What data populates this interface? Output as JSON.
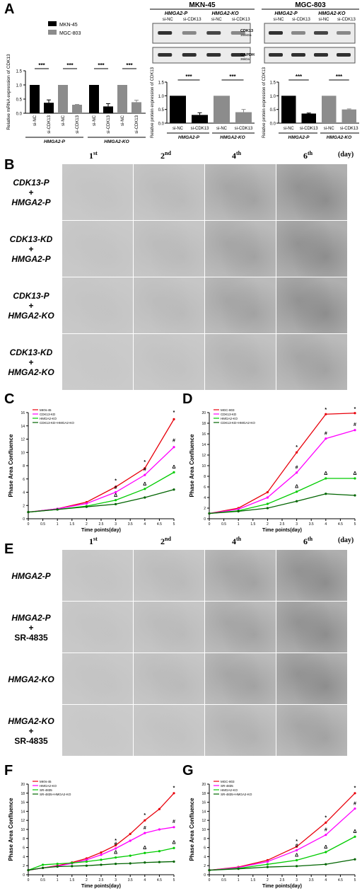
{
  "panelA": {
    "label": "A",
    "mrna": {
      "legend": [
        {
          "name": "MKN-45",
          "color": "#000000"
        },
        {
          "name": "MGC-803",
          "color": "#8c8c8c"
        }
      ],
      "ylabel": "Relative mRNA expression of CDK13",
      "yticks": [
        "0.0",
        "0.5",
        "1.0",
        "1.5"
      ],
      "bars": [
        {
          "x": "si-NC",
          "value": 1.0,
          "err": 0,
          "color": "#000000"
        },
        {
          "x": "si-CDK13",
          "value": 0.37,
          "err": 0.1,
          "color": "#000000"
        },
        {
          "x": "si-NC",
          "value": 1.0,
          "err": 0,
          "color": "#8c8c8c"
        },
        {
          "x": "si-CDK13",
          "value": 0.3,
          "err": 0.01,
          "color": "#8c8c8c"
        },
        {
          "x": "si-NC",
          "value": 1.0,
          "err": 0,
          "color": "#000000"
        },
        {
          "x": "si-CDK13",
          "value": 0.24,
          "err": 0.1,
          "color": "#000000"
        },
        {
          "x": "si-NC",
          "value": 1.0,
          "err": 0,
          "color": "#8c8c8c"
        },
        {
          "x": "si-CDK13",
          "value": 0.39,
          "err": 0.07,
          "color": "#8c8c8c"
        }
      ],
      "sig": "***",
      "groups": [
        "HMGA2-P",
        "HMGA2-KO"
      ]
    },
    "mkn": {
      "title": "MKN-45",
      "blot_headers": [
        "HMGA2-P",
        "HMGA2-KO"
      ],
      "lanes": [
        "si-NC",
        "si-CDK13",
        "si-NC",
        "si-CDK13"
      ],
      "ylabel": "Relative protein expression of CDK13",
      "yticks": [
        "0.0",
        "0.5",
        "1.0",
        "1.5"
      ],
      "bars": [
        {
          "v": 1.0,
          "e": 0,
          "c": "#000000"
        },
        {
          "v": 0.3,
          "e": 0.08,
          "c": "#000000"
        },
        {
          "v": 1.0,
          "e": 0,
          "c": "#8c8c8c"
        },
        {
          "v": 0.4,
          "e": 0.1,
          "c": "#8c8c8c"
        }
      ],
      "groups": [
        "HMGA2-P",
        "HMGA2-KO"
      ],
      "sig": "***"
    },
    "mgc": {
      "title": "MGC-803",
      "blot_headers": [
        "HMGA2-P",
        "HMGA2-KO"
      ],
      "lanes": [
        "si-NC",
        "si-CDK13",
        "si-NC",
        "si-CDK13"
      ],
      "ylabel": "Relative protein expression of CDK13",
      "yticks": [
        "0.0",
        "0.5",
        "1.0",
        "1.5"
      ],
      "bars": [
        {
          "v": 1.0,
          "e": 0,
          "c": "#000000"
        },
        {
          "v": 0.35,
          "e": 0.02,
          "c": "#000000"
        },
        {
          "v": 1.0,
          "e": 0,
          "c": "#8c8c8c"
        },
        {
          "v": 0.5,
          "e": 0.02,
          "c": "#8c8c8c"
        }
      ],
      "groups": [
        "HMGA2-P",
        "HMGA2-KO"
      ],
      "sig": "***",
      "blot_labels": [
        {
          "name": "CDK13",
          "size": "164kDa"
        },
        {
          "name": "GAPDH",
          "size": "36kDa"
        }
      ]
    }
  },
  "panelB": {
    "label": "B",
    "cols": [
      "1",
      "2",
      "4",
      "6"
    ],
    "col_sup": [
      "st",
      "nd",
      "th",
      "th"
    ],
    "day": "(day)",
    "rows": [
      [
        "CDK13-P",
        "+",
        "HMGA2-P"
      ],
      [
        "CDK13-KD",
        "+",
        "HMGA2-P"
      ],
      [
        "CDK13-P",
        "+",
        "HMGA2-KO"
      ],
      [
        "CDK13-KD",
        "+",
        "HMGA2-KO"
      ]
    ]
  },
  "panelE": {
    "label": "E",
    "cols": [
      "1",
      "2",
      "4",
      "6"
    ],
    "col_sup": [
      "st",
      "nd",
      "th",
      "th"
    ],
    "day": "(day)",
    "rows": [
      [
        "HMGA2-P"
      ],
      [
        "HMGA2-P",
        "+",
        "SR-4835"
      ],
      [
        "HMGA2-KO"
      ],
      [
        "HMGA2-KO",
        "+",
        "SR-4835"
      ]
    ]
  },
  "chart_data": [
    {
      "panel": "C",
      "type": "line",
      "xlabel": "Time points(day)",
      "ylabel": "Phase Area Confluence",
      "x": [
        0,
        1,
        2,
        3,
        4,
        5
      ],
      "ylim": [
        0,
        16
      ],
      "xticks": [
        "0",
        "0.5",
        "1",
        "1.5",
        "2",
        "2.5",
        "3",
        "3.5",
        "4",
        "4.5",
        "5"
      ],
      "yticks": [
        "0",
        "2",
        "4",
        "6",
        "8",
        "10",
        "12",
        "14",
        "16"
      ],
      "series": [
        {
          "name": "MKN-45",
          "color": "#e8000b",
          "values": [
            1.0,
            1.5,
            2.5,
            4.8,
            7.6,
            15.0
          ]
        },
        {
          "name": "CDK13-KD",
          "color": "#ff00ff",
          "values": [
            1.0,
            1.5,
            2.3,
            4.0,
            6.6,
            10.8
          ]
        },
        {
          "name": "HMGA2-KO",
          "color": "#00cc00",
          "values": [
            1.0,
            1.4,
            1.9,
            2.8,
            4.5,
            7.0
          ]
        },
        {
          "name": "CDK13-KD+HMGA2-KO",
          "color": "#006400",
          "values": [
            1.0,
            1.4,
            1.8,
            2.2,
            3.2,
            4.4
          ]
        }
      ]
    },
    {
      "panel": "D",
      "type": "line",
      "xlabel": "Time points(day)",
      "ylabel": "Phase Area Confluence",
      "x": [
        0,
        1,
        2,
        3,
        4,
        5
      ],
      "ylim": [
        0,
        20
      ],
      "xticks": [
        "0",
        "0.5",
        "1",
        "1.5",
        "2",
        "2.5",
        "3",
        "3.5",
        "4",
        "4.5",
        "5"
      ],
      "yticks": [
        "0",
        "2",
        "4",
        "6",
        "8",
        "10",
        "12",
        "14",
        "16",
        "18",
        "20"
      ],
      "series": [
        {
          "name": "MGC-803",
          "color": "#e8000b",
          "values": [
            1.0,
            2.0,
            5.0,
            12.5,
            19.7,
            19.9
          ]
        },
        {
          "name": "CDK13-KD",
          "color": "#ff00ff",
          "values": [
            1.0,
            1.8,
            4.0,
            8.7,
            15.1,
            16.7
          ]
        },
        {
          "name": "HMGA2-KO",
          "color": "#00cc00",
          "values": [
            1.0,
            1.5,
            2.8,
            5.1,
            7.6,
            7.6
          ]
        },
        {
          "name": "CDK13-KD+HMGA2-KO",
          "color": "#006400",
          "values": [
            1.0,
            1.4,
            2.0,
            3.3,
            4.7,
            4.4
          ]
        }
      ]
    },
    {
      "panel": "F",
      "type": "line",
      "xlabel": "Time points(day)",
      "ylabel": "Phase Area Confluence",
      "x": [
        0,
        0.5,
        1,
        1.5,
        2,
        2.5,
        3,
        3.5,
        4,
        4.5,
        5
      ],
      "ylim": [
        0,
        20
      ],
      "xticks": [
        "0",
        "0.5",
        "1",
        "1.5",
        "2",
        "2.5",
        "3",
        "3.5",
        "4",
        "4.5",
        "5"
      ],
      "yticks": [
        "0",
        "2",
        "4",
        "6",
        "8",
        "10",
        "12",
        "14",
        "16",
        "18",
        "20"
      ],
      "series": [
        {
          "name": "MKN-45",
          "color": "#e8000b",
          "values": [
            1.0,
            1.5,
            2.0,
            2.7,
            3.6,
            4.9,
            6.5,
            9.0,
            12.0,
            14.5,
            18.0
          ]
        },
        {
          "name": "HMGA2-KO",
          "color": "#ff00ff",
          "values": [
            1.0,
            1.5,
            1.9,
            2.5,
            3.3,
            4.4,
            5.8,
            7.5,
            9.2,
            10.0,
            10.5
          ]
        },
        {
          "name": "SR-4835",
          "color": "#00cc00",
          "values": [
            1.0,
            2.2,
            2.4,
            2.6,
            2.9,
            3.3,
            3.8,
            4.2,
            4.8,
            5.2,
            5.9
          ]
        },
        {
          "name": "SR-4835+HMGA2-KO",
          "color": "#006400",
          "values": [
            1.0,
            1.5,
            1.8,
            1.9,
            2.0,
            2.2,
            2.4,
            2.5,
            2.7,
            2.8,
            2.9
          ]
        }
      ]
    },
    {
      "panel": "G",
      "type": "line",
      "xlabel": "Time points(day)",
      "ylabel": "Phase Area Confluence",
      "x": [
        0,
        1,
        2,
        3,
        4,
        5
      ],
      "ylim": [
        0,
        20
      ],
      "xticks": [
        "0",
        "0.5",
        "1",
        "1.5",
        "2",
        "2.5",
        "3",
        "3.5",
        "4",
        "4.5",
        "5"
      ],
      "yticks": [
        "0",
        "2",
        "4",
        "6",
        "8",
        "10",
        "12",
        "14",
        "16",
        "18",
        "20"
      ],
      "series": [
        {
          "name": "MGC-803",
          "color": "#e8000b",
          "values": [
            1.0,
            1.7,
            3.2,
            6.2,
            11.5,
            18.0
          ]
        },
        {
          "name": "SR-4835",
          "color": "#ff00ff",
          "values": [
            1.0,
            1.6,
            2.9,
            5.4,
            8.8,
            14.6
          ]
        },
        {
          "name": "HMGA2-KO",
          "color": "#00cc00",
          "values": [
            1.0,
            1.4,
            2.3,
            3.2,
            5.0,
            8.4
          ]
        },
        {
          "name": "SR-4835+HMGA2-KO",
          "color": "#006400",
          "values": [
            1.0,
            1.3,
            1.7,
            1.9,
            2.3,
            3.4
          ]
        }
      ]
    }
  ],
  "markers": {
    "star": "*",
    "hash": "#",
    "tri": "Δ"
  }
}
